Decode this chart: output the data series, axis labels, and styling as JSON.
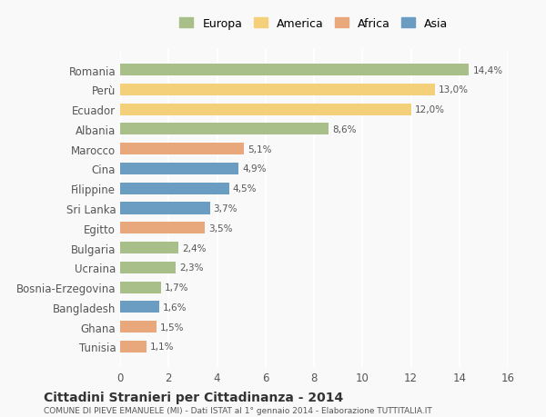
{
  "categories": [
    "Tunisia",
    "Ghana",
    "Bangladesh",
    "Bosnia-Erzegovina",
    "Ucraina",
    "Bulgaria",
    "Egitto",
    "Sri Lanka",
    "Filippine",
    "Cina",
    "Marocco",
    "Albania",
    "Ecuador",
    "Perù",
    "Romania"
  ],
  "values": [
    1.1,
    1.5,
    1.6,
    1.7,
    2.3,
    2.4,
    3.5,
    3.7,
    4.5,
    4.9,
    5.1,
    8.6,
    12.0,
    13.0,
    14.4
  ],
  "colors": [
    "#e8a87c",
    "#e8a87c",
    "#6b9dc2",
    "#a8bf8a",
    "#a8bf8a",
    "#a8bf8a",
    "#e8a87c",
    "#6b9dc2",
    "#6b9dc2",
    "#6b9dc2",
    "#e8a87c",
    "#a8bf8a",
    "#f5d07a",
    "#f5d07a",
    "#a8bf8a"
  ],
  "legend_labels": [
    "Europa",
    "America",
    "Africa",
    "Asia"
  ],
  "legend_colors": [
    "#a8bf8a",
    "#f5d07a",
    "#e8a87c",
    "#6b9dc2"
  ],
  "title": "Cittadini Stranieri per Cittadinanza - 2014",
  "subtitle": "COMUNE DI PIEVE EMANUELE (MI) - Dati ISTAT al 1° gennaio 2014 - Elaborazione TUTTITALIA.IT",
  "xlim": [
    0,
    16
  ],
  "xticks": [
    0,
    2,
    4,
    6,
    8,
    10,
    12,
    14,
    16
  ],
  "background_color": "#f9f9f9",
  "grid_color": "#ffffff",
  "bar_height": 0.6
}
